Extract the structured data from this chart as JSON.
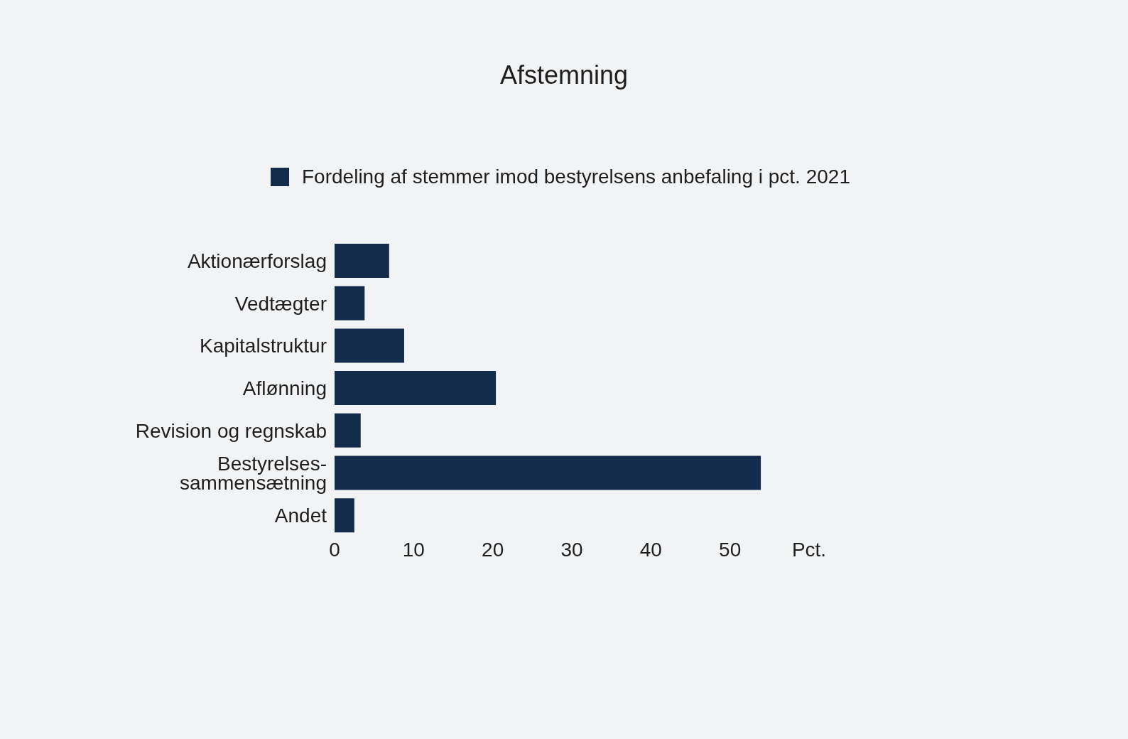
{
  "chart_data": {
    "type": "bar",
    "orientation": "horizontal",
    "title": "Afstemning",
    "categories": [
      "Aktionærforslag",
      "Vedtægter",
      "Kapitalstruktur",
      "Aflønning",
      "Revision og regnskab",
      "Bestyrelses-sammensætning",
      "Andet"
    ],
    "series": [
      {
        "name": "Fordeling af stemmer imod bestyrelsens anbefaling i pct. 2021",
        "color": "#142c4c",
        "values": [
          6.9,
          3.8,
          8.8,
          20.4,
          3.3,
          53.9,
          2.5
        ]
      }
    ],
    "xlim": [
      0,
      60
    ],
    "xticks": [
      0,
      10,
      20,
      30,
      40,
      50,
      {
        "value": 60,
        "label": "Pct."
      }
    ],
    "legend": "top"
  }
}
